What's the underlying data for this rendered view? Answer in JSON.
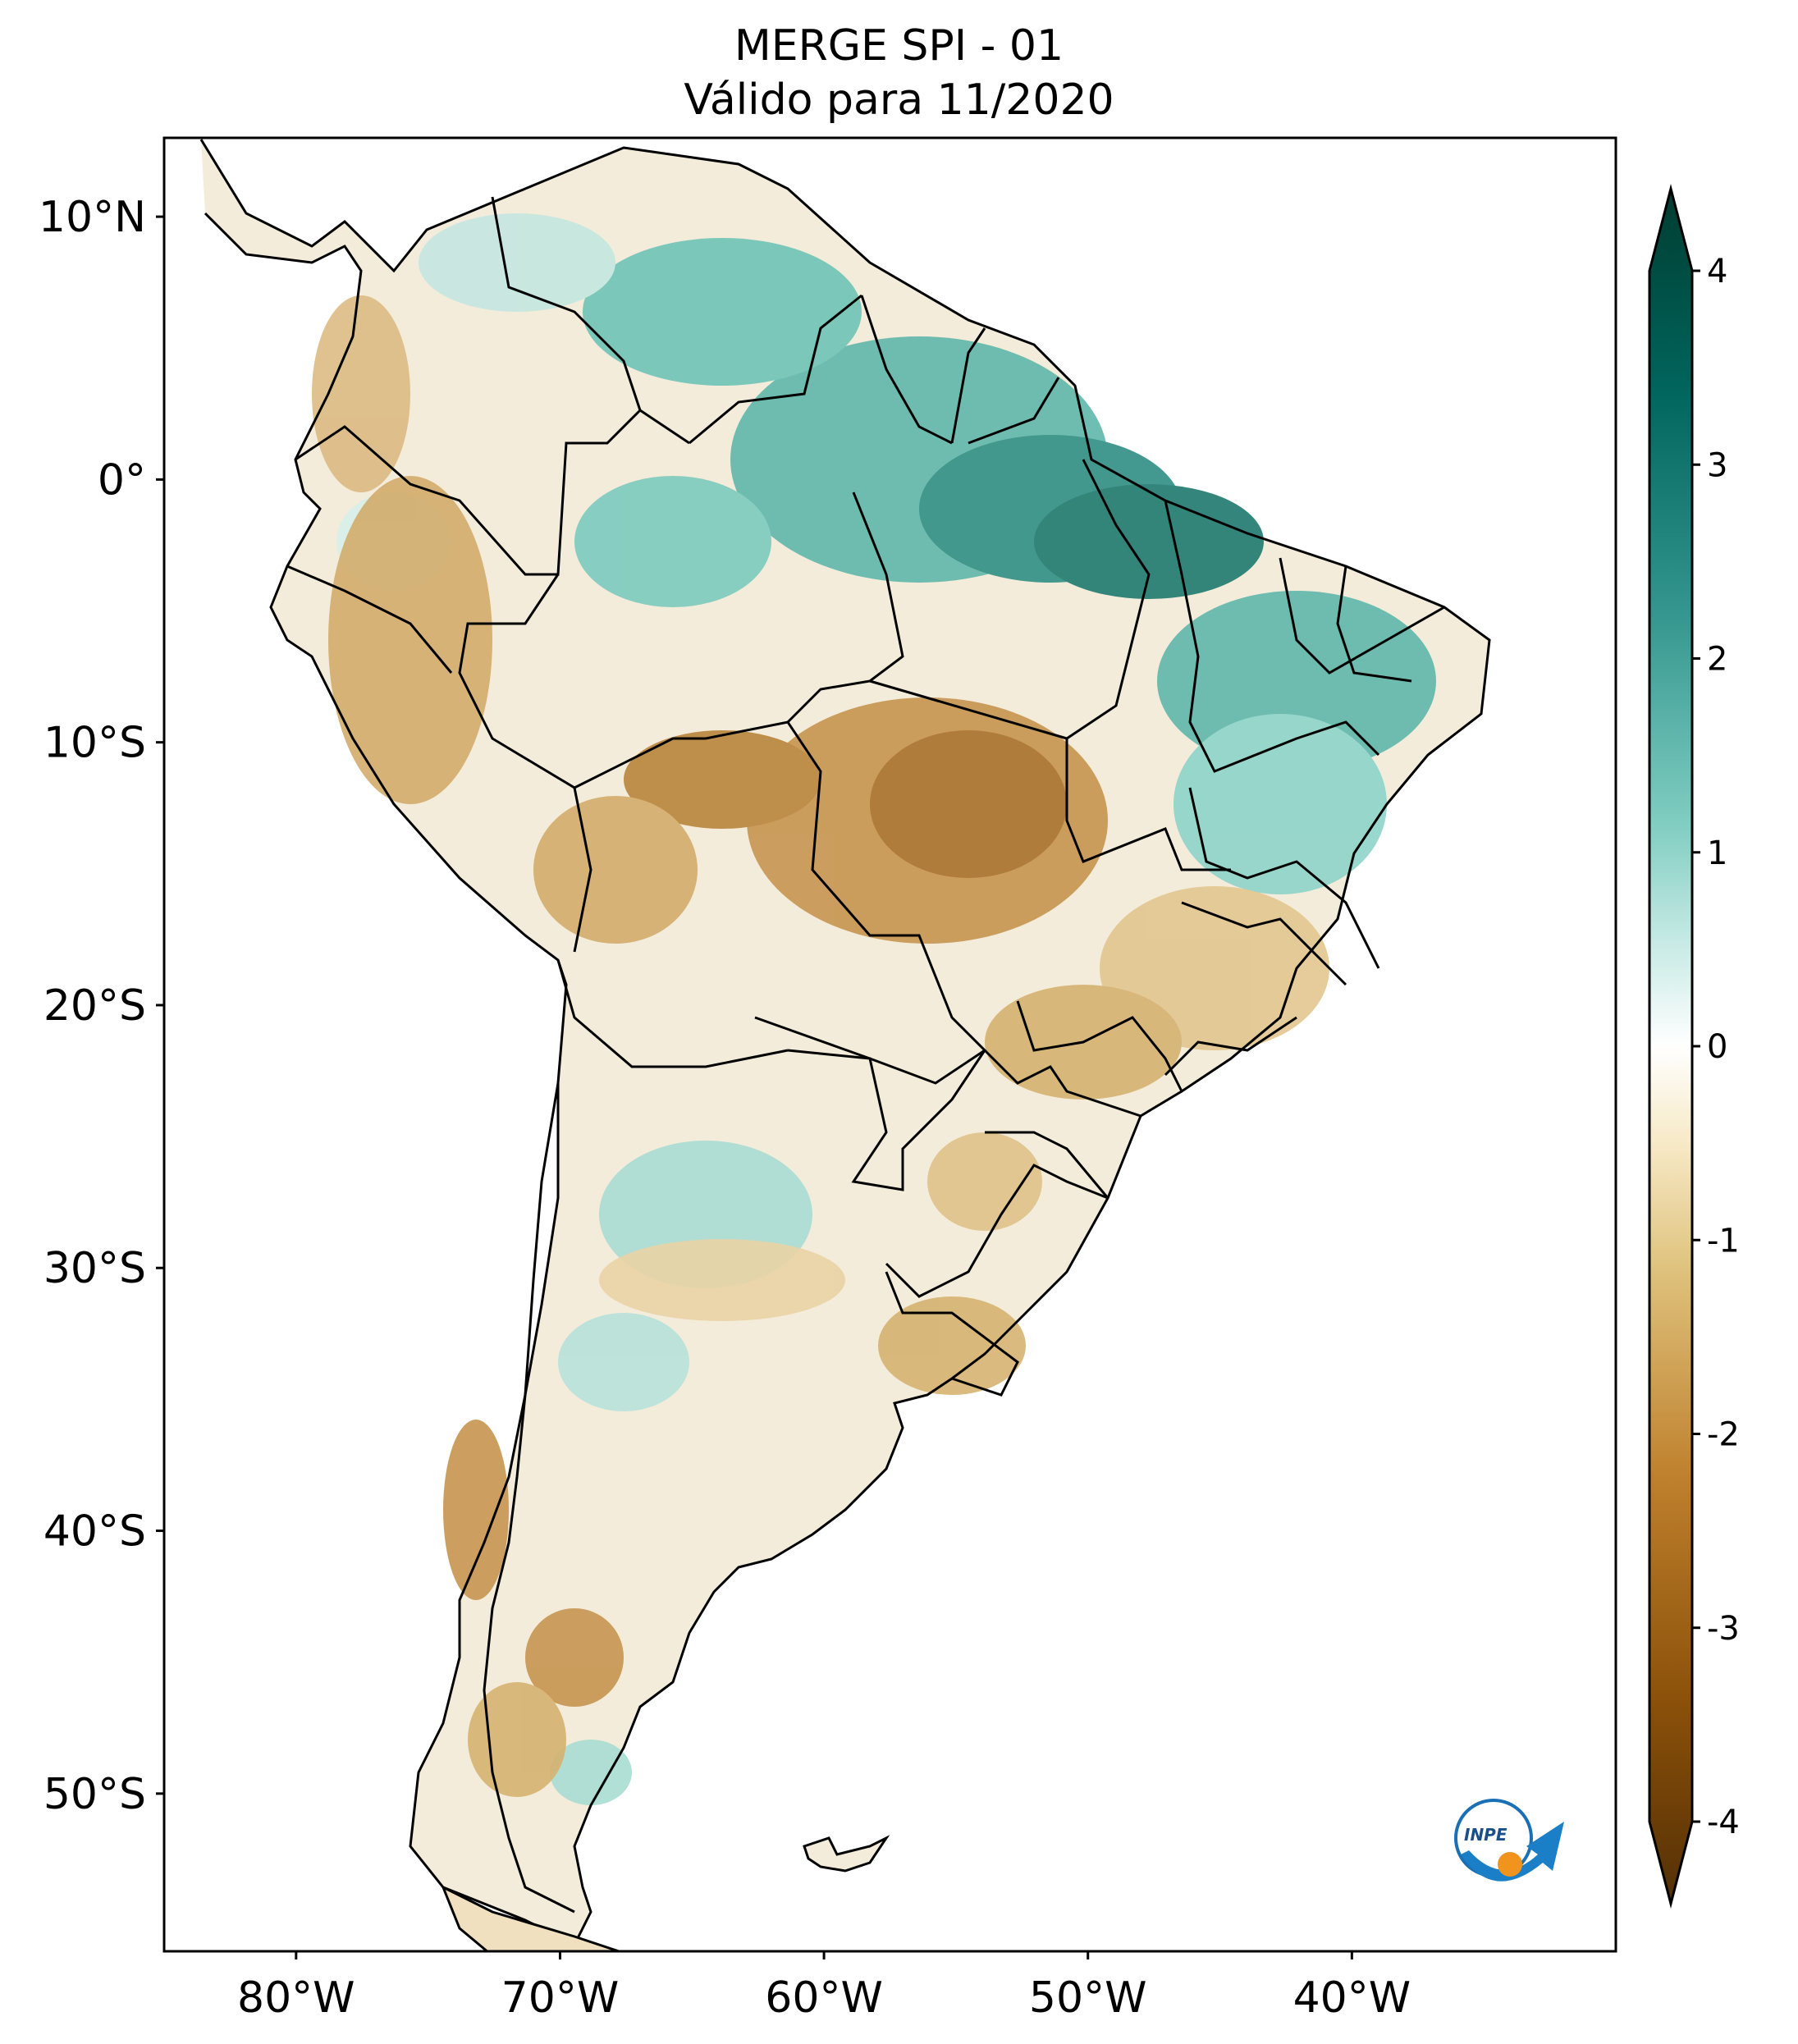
{
  "title": {
    "line1": "MERGE   SPI - 01",
    "line2": "Válido para 11/2020"
  },
  "map": {
    "lat_ticks": [
      "10°N",
      "0°",
      "10°S",
      "20°S",
      "30°S",
      "40°S",
      "50°S"
    ],
    "lon_ticks": [
      "80°W",
      "70°W",
      "60°W",
      "50°W",
      "40°W"
    ],
    "lat_values": [
      10,
      0,
      -10,
      -20,
      -30,
      -40,
      -50
    ],
    "lon_values": [
      -80,
      -70,
      -60,
      -50,
      -40
    ],
    "extent": {
      "lon_min": -85,
      "lon_max": -30,
      "lat_min": -56,
      "lat_max": 13
    }
  },
  "colorbar": {
    "labels": [
      "4",
      "3",
      "2",
      "1",
      "0",
      "-1",
      "-2",
      "-3",
      "-4"
    ],
    "min": -4,
    "max": 4,
    "colors": {
      "dry_extreme": "#543005",
      "dry": "#8c510a",
      "dry_mid": "#bf812d",
      "dry_light": "#dfc27d",
      "neutral": "#ffffff",
      "wet_light": "#80cdc1",
      "wet_mid": "#35978f",
      "wet": "#01665e",
      "wet_extreme": "#003c30"
    }
  },
  "logo": {
    "text": "INPE"
  }
}
